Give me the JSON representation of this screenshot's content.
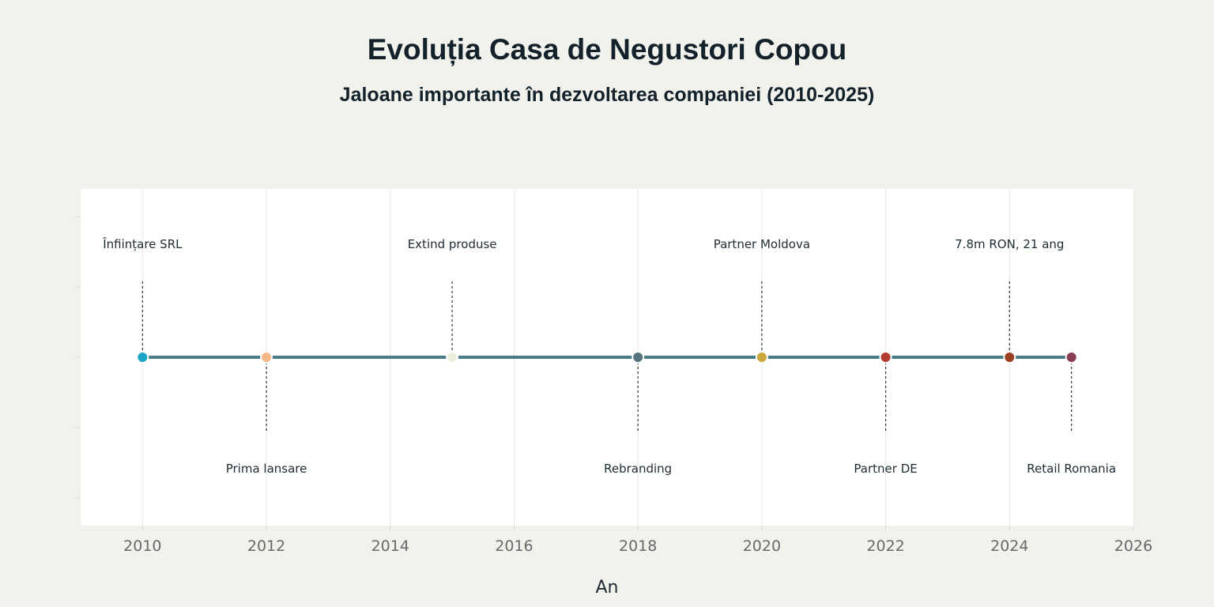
{
  "title": "Evoluția Casa de Negustori Copou",
  "subtitle": "Jaloane importante în dezvoltarea companiei (2010-2025)",
  "chart_data": {
    "type": "scatter",
    "title": "Evoluția Casa de Negustori Copou",
    "subtitle": "Jaloane importante în dezvoltarea companiei (2010-2025)",
    "xlabel": "An",
    "ylabel": "",
    "xlim": [
      2009,
      2026
    ],
    "x_ticks": [
      2010,
      2012,
      2014,
      2016,
      2018,
      2020,
      2022,
      2024,
      2026
    ],
    "grid": true,
    "line_color": "#4a7c86",
    "milestones": [
      {
        "year": 2010,
        "label": "Înființare SRL",
        "side": "above",
        "color": "#1aa7c7"
      },
      {
        "year": 2012,
        "label": "Prima lansare",
        "side": "below",
        "color": "#f6b98a"
      },
      {
        "year": 2015,
        "label": "Extind produse",
        "side": "above",
        "color": "#eeeedd"
      },
      {
        "year": 2018,
        "label": "Rebranding",
        "side": "below",
        "color": "#55727e"
      },
      {
        "year": 2020,
        "label": "Partner Moldova",
        "side": "above",
        "color": "#c9a93c"
      },
      {
        "year": 2022,
        "label": "Partner DE",
        "side": "below",
        "color": "#b33a32"
      },
      {
        "year": 2024,
        "label": "7.8m RON, 21 ang",
        "side": "above",
        "color": "#9a3f22"
      },
      {
        "year": 2025,
        "label": "Retail Romania",
        "side": "below",
        "color": "#8a3e52"
      }
    ]
  }
}
